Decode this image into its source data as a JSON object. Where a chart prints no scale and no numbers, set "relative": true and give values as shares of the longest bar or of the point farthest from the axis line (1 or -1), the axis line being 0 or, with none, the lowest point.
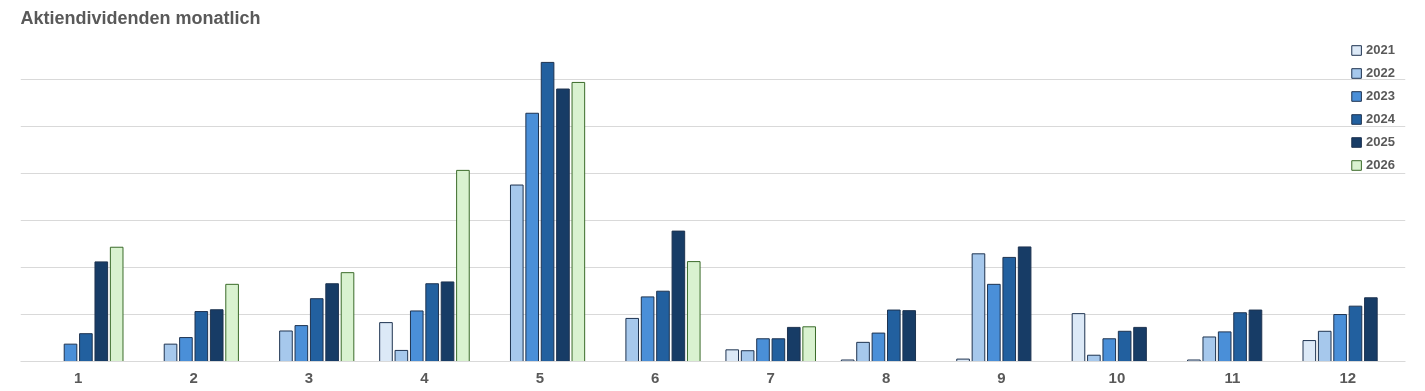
{
  "chart_data": {
    "type": "bar",
    "title": "Aktiendividenden monatlich",
    "relative": true,
    "grid": "y",
    "legend": "top right",
    "categories": [
      "1",
      "2",
      "3",
      "4",
      "5",
      "6",
      "7",
      "8",
      "9",
      "10",
      "11",
      "12"
    ],
    "series": [
      {
        "name": "2021",
        "color": "#dce9f7",
        "values": [
          null,
          null,
          null,
          0.13,
          null,
          null,
          0.039,
          0.005,
          0.008,
          0.16,
          0.005,
          0.07
        ]
      },
      {
        "name": "2022",
        "color": "#a6c8ec",
        "values": [
          null,
          0.058,
          0.102,
          0.037,
          0.59,
          0.144,
          0.036,
          0.064,
          0.36,
          0.021,
          0.082,
          0.101
        ]
      },
      {
        "name": "2023",
        "color": "#4a8fd8",
        "values": [
          0.058,
          0.08,
          0.12,
          0.169,
          0.83,
          0.216,
          0.076,
          0.095,
          0.258,
          0.076,
          0.099,
          0.157
        ]
      },
      {
        "name": "2024",
        "color": "#22609f",
        "values": [
          0.093,
          0.167,
          0.21,
          0.26,
          1,
          0.235,
          0.076,
          0.172,
          0.348,
          0.101,
          0.163,
          0.185
        ]
      },
      {
        "name": "2025",
        "color": "#173c66",
        "values": [
          0.333,
          0.173,
          0.26,
          0.266,
          0.911,
          0.436,
          0.114,
          0.17,
          0.383,
          0.114,
          0.172,
          0.213
        ]
      },
      {
        "name": "2026",
        "color": "#d9f2d0",
        "values": [
          0.382,
          0.258,
          0.297,
          0.639,
          0.933,
          0.334,
          0.116,
          null,
          null,
          null,
          null,
          null
        ]
      }
    ]
  }
}
